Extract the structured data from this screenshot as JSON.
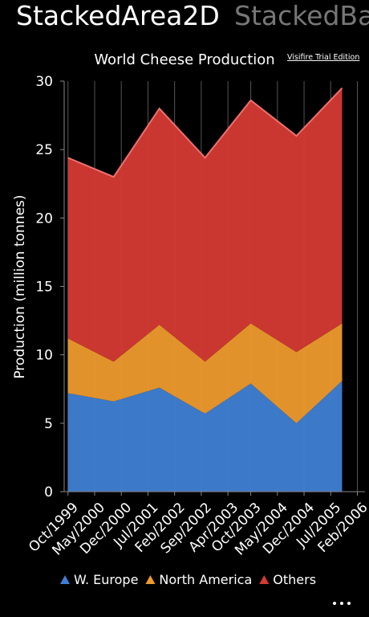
{
  "pivot": {
    "headers": [
      "StackedArea2D",
      "StackedBa"
    ]
  },
  "chart_data": {
    "type": "stacked-area",
    "title": "World Cheese Production",
    "watermark": "Visifire Trial Edition",
    "ylabel": "Production (million tonnes)",
    "x": [
      "1999-10",
      "2000-10",
      "2001-10",
      "2002-10",
      "2003-10",
      "2004-10",
      "2005-10"
    ],
    "xlim": [
      "1999-09",
      "2006-04"
    ],
    "xticks": [
      {
        "value": "1999-10",
        "label": "Oct/1999"
      },
      {
        "value": "2000-05",
        "label": "May/2000"
      },
      {
        "value": "2000-12",
        "label": "Dec/2000"
      },
      {
        "value": "2001-07",
        "label": "Jul/2001"
      },
      {
        "value": "2002-02",
        "label": "Feb/2002"
      },
      {
        "value": "2002-09",
        "label": "Sep/2002"
      },
      {
        "value": "2003-04",
        "label": "Apr/2003"
      },
      {
        "value": "2003-10",
        "label": "Oct/2003"
      },
      {
        "value": "2004-05",
        "label": "May/2004"
      },
      {
        "value": "2004-12",
        "label": "Dec/2004"
      },
      {
        "value": "2005-07",
        "label": "Jul/2005"
      },
      {
        "value": "2006-02",
        "label": "Feb/2006"
      }
    ],
    "ylim": [
      0,
      30
    ],
    "yticks": [
      0,
      5,
      10,
      15,
      20,
      25,
      30
    ],
    "grid": "vertical",
    "legend": "bottom",
    "series": [
      {
        "name": "W. Europe",
        "color": "#3f7fd3",
        "values": [
          7.2,
          6.6,
          7.6,
          5.7,
          7.9,
          5.0,
          8.1
        ]
      },
      {
        "name": "North America",
        "color": "#ee9a2c",
        "values": [
          4.0,
          2.9,
          4.6,
          3.8,
          4.4,
          5.2,
          4.2
        ]
      },
      {
        "name": "Others",
        "color": "#d43a33",
        "values": [
          13.2,
          13.5,
          15.8,
          14.9,
          16.3,
          15.8,
          17.2
        ]
      }
    ]
  }
}
